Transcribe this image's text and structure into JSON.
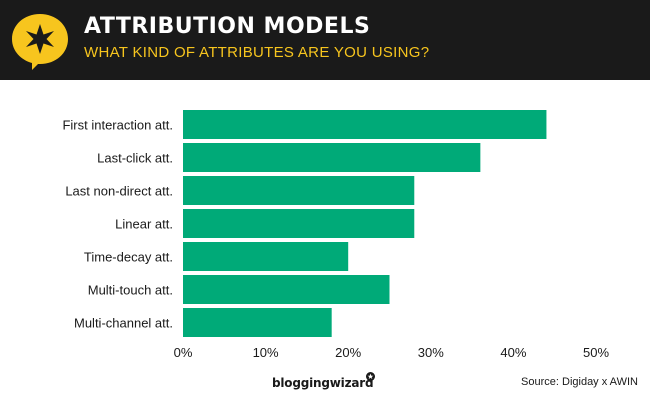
{
  "header": {
    "title": "ATTRIBUTION MODELS",
    "subtitle": "WHAT KIND OF ATTRIBUTES ARE YOU USING?",
    "background_color": "#1a1a1a",
    "title_color": "#ffffff",
    "subtitle_color": "#f7c51e",
    "icon": "star-speech-bubble-icon"
  },
  "footer": {
    "brand": "bloggingwizard",
    "brand_icon": "wand-star-icon",
    "source": "Source: Digiday x AWIN"
  },
  "chart_data": {
    "type": "bar",
    "orientation": "horizontal",
    "title": "ATTRIBUTION MODELS",
    "subtitle": "WHAT KIND OF ATTRIBUTES ARE YOU USING?",
    "categories": [
      "First interaction att.",
      "Last-click att.",
      "Last non-direct att.",
      "Linear att.",
      "Time-decay att.",
      "Multi-touch att.",
      "Multi-channel att."
    ],
    "values": [
      44,
      36,
      28,
      28,
      20,
      25,
      18
    ],
    "xlabel": "",
    "ylabel": "",
    "xlim": [
      0,
      50
    ],
    "xticks": [
      "0%",
      "10%",
      "20%",
      "30%",
      "40%",
      "50%"
    ],
    "grid": false,
    "legend": "none",
    "bar_color": "#00aa78"
  }
}
